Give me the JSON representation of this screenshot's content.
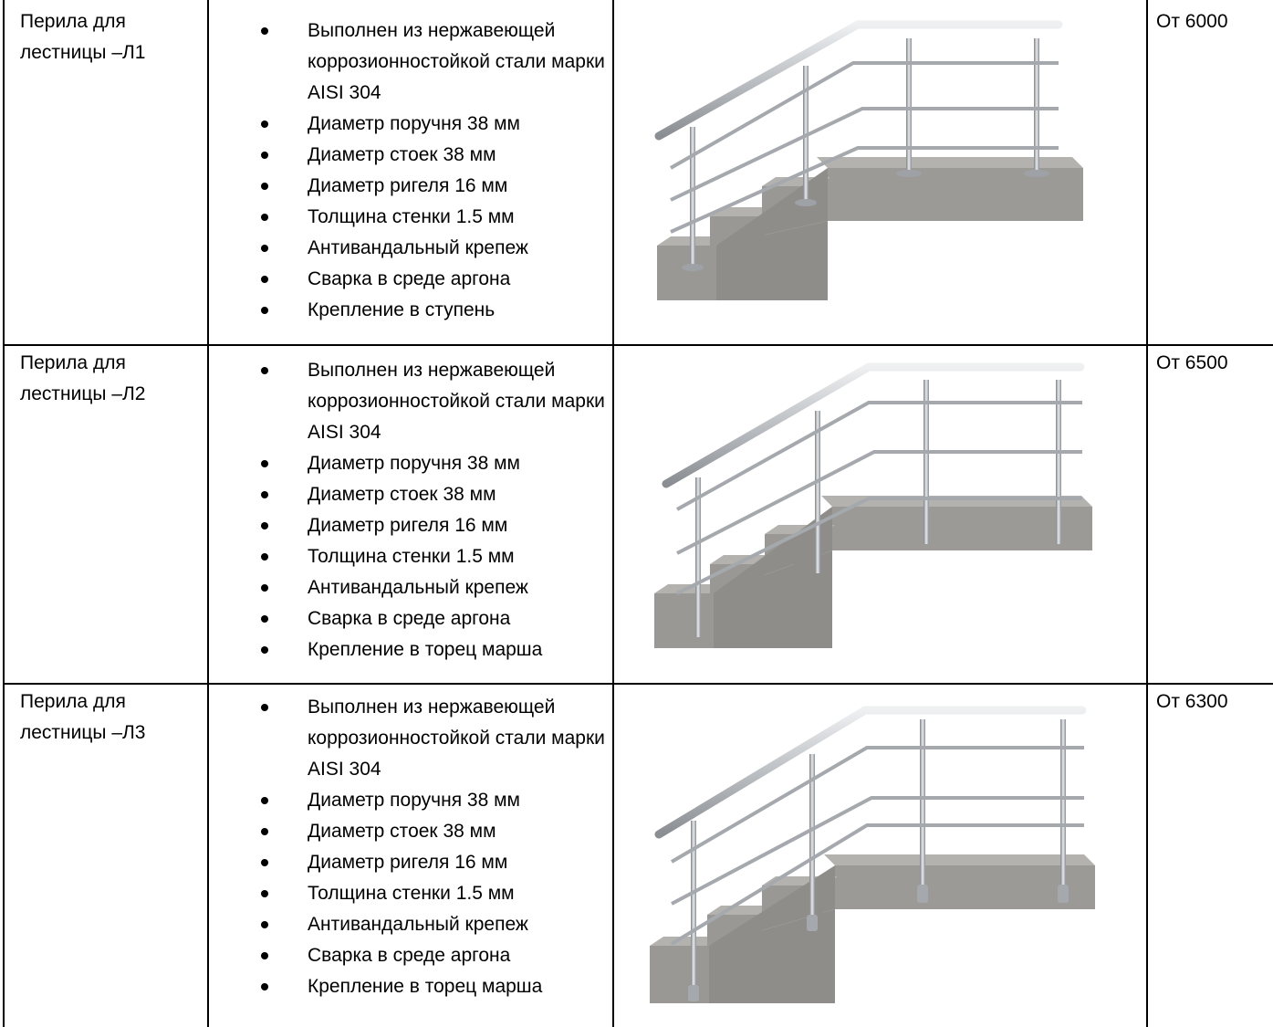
{
  "rows": [
    {
      "name": "Перила для лестницы –Л1",
      "price": "От 6000",
      "specs": [
        "Выполнен из нержавеющей коррозионностойкой стали марки AISI 304",
        "Диаметр поручня 38 мм",
        "Диаметр стоек 38 мм",
        "Диаметр ригеля 16 мм",
        "Толщина стенки 1.5 мм",
        "Антивандальный крепеж",
        "Сварка в среде аргона",
        "Крепление в ступень"
      ],
      "image_icon": "stair-railing-step-mount-illustration"
    },
    {
      "name": "Перила для лестницы –Л2",
      "price": "От 6500",
      "specs": [
        "Выполнен из нержавеющей коррозионностойкой стали марки AISI 304",
        "Диаметр поручня 38 мм",
        "Диаметр стоек 38 мм",
        "Диаметр ригеля 16 мм",
        "Толщина стенки 1.5 мм",
        "Антивандальный крепеж",
        "Сварка в среде аргона",
        "Крепление в торец марша"
      ],
      "image_icon": "stair-railing-side-mount-illustration"
    },
    {
      "name": "Перила для лестницы –Л3",
      "price": "От 6300",
      "specs": [
        "Выполнен из нержавеющей коррозионностойкой стали марки AISI 304",
        "Диаметр поручня 38 мм",
        "Диаметр стоек 38 мм",
        "Диаметр ригеля 16 мм",
        "Толщина стенки 1.5 мм",
        "Антивандальный крепеж",
        "Сварка в среде аргона",
        "Крепление в торец марша"
      ],
      "image_icon": "stair-railing-side-mount-bracket-illustration"
    }
  ],
  "colors": {
    "concrete_top": "#a8a7a4",
    "concrete_front": "#9a9996",
    "concrete_side": "#878683",
    "steel": "#b9bdc1",
    "steel_dark": "#7d8186"
  }
}
